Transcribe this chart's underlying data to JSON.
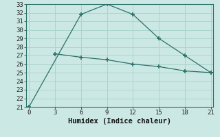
{
  "xlabel": "Humidex (Indice chaleur)",
  "ylabel": "",
  "bg_color": "#cce8e4",
  "grid_color": "#aad4ce",
  "line_color": "#2a7068",
  "line1_x": [
    0,
    6,
    9,
    12,
    15,
    18,
    21
  ],
  "line1_y": [
    21,
    31.8,
    33,
    31.8,
    29,
    27,
    25
  ],
  "line2_x": [
    3,
    6,
    9,
    12,
    15,
    18,
    21
  ],
  "line2_y": [
    27.2,
    26.8,
    26.5,
    26.0,
    25.7,
    25.2,
    25.0
  ],
  "xlim": [
    -0.3,
    21.3
  ],
  "ylim": [
    21,
    33
  ],
  "xticks": [
    0,
    3,
    6,
    9,
    12,
    15,
    18,
    21
  ],
  "yticks": [
    21,
    22,
    23,
    24,
    25,
    26,
    27,
    28,
    29,
    30,
    31,
    32,
    33
  ],
  "tick_fontsize": 6.5,
  "xlabel_fontsize": 7.5,
  "spine_color": "#2a7068"
}
